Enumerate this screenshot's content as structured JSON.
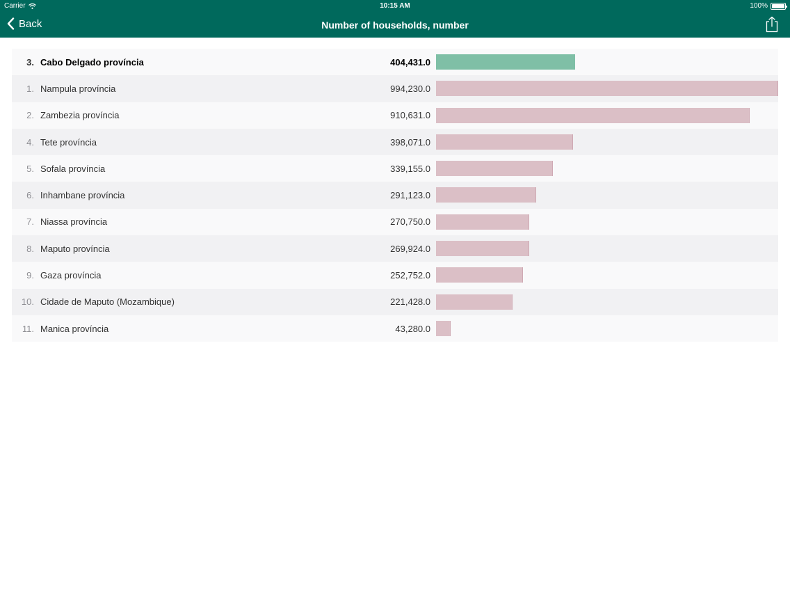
{
  "status_bar": {
    "carrier": "Carrier",
    "time": "10:15 AM",
    "battery": "100%"
  },
  "navbar": {
    "back_label": "Back",
    "title": "Number of households, number"
  },
  "colors": {
    "header_bg": "#00695c",
    "selected_bar": "#7fbfa6",
    "other_bar": "#dbbfc6"
  },
  "chart_data": {
    "type": "bar",
    "title": "Number of households, number",
    "max_value": 994230.0,
    "rows": [
      {
        "rank": "3.",
        "name": "Cabo Delgado província",
        "value_label": "404,431.0",
        "value": 404431.0,
        "selected": true
      },
      {
        "rank": "1.",
        "name": "Nampula província",
        "value_label": "994,230.0",
        "value": 994230.0,
        "selected": false
      },
      {
        "rank": "2.",
        "name": "Zambezia província",
        "value_label": "910,631.0",
        "value": 910631.0,
        "selected": false
      },
      {
        "rank": "4.",
        "name": "Tete província",
        "value_label": "398,071.0",
        "value": 398071.0,
        "selected": false
      },
      {
        "rank": "5.",
        "name": "Sofala província",
        "value_label": "339,155.0",
        "value": 339155.0,
        "selected": false
      },
      {
        "rank": "6.",
        "name": "Inhambane província",
        "value_label": "291,123.0",
        "value": 291123.0,
        "selected": false
      },
      {
        "rank": "7.",
        "name": "Niassa província",
        "value_label": "270,750.0",
        "value": 270750.0,
        "selected": false
      },
      {
        "rank": "8.",
        "name": "Maputo província",
        "value_label": "269,924.0",
        "value": 269924.0,
        "selected": false
      },
      {
        "rank": "9.",
        "name": "Gaza província",
        "value_label": "252,752.0",
        "value": 252752.0,
        "selected": false
      },
      {
        "rank": "10.",
        "name": "Cidade de Maputo (Mozambique)",
        "value_label": "221,428.0",
        "value": 221428.0,
        "selected": false
      },
      {
        "rank": "11.",
        "name": "Manica província",
        "value_label": "43,280.0",
        "value": 43280.0,
        "selected": false
      }
    ]
  }
}
